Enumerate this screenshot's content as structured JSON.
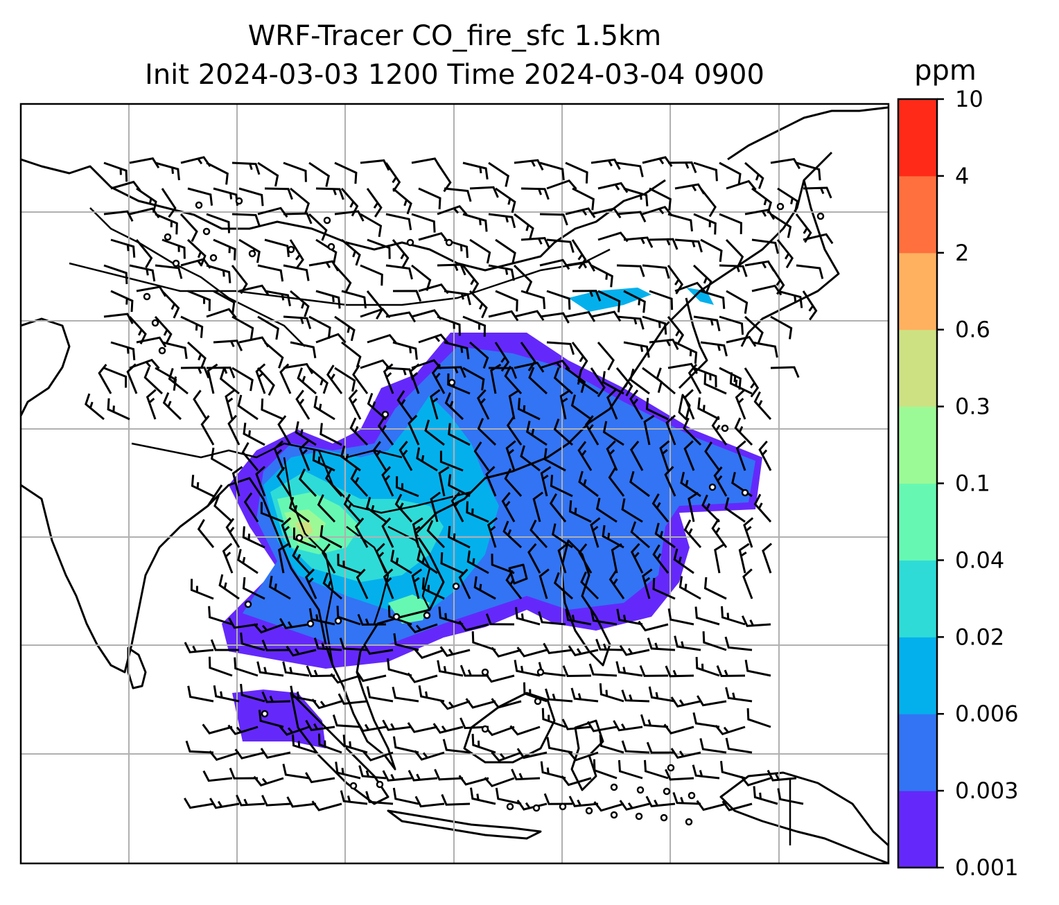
{
  "title": {
    "line1": "WRF-Tracer CO_fire_sfc 1.5km",
    "line2": "Init 2024-03-03 1200 Time 2024-03-04 0900"
  },
  "colorbar": {
    "unit": "ppm",
    "levels": [
      "0.001",
      "0.003",
      "0.006",
      "0.02",
      "0.04",
      "0.1",
      "0.3",
      "0.6",
      "2",
      "4",
      "10"
    ],
    "colors": [
      "#6429fa",
      "#3274f4",
      "#04b0ec",
      "#2fdbd7",
      "#66f8b3",
      "#9cfa96",
      "#cde183",
      "#ffb15f",
      "#ff703e",
      "#ff2a17"
    ]
  },
  "map": {
    "gridlines": true,
    "features": [
      "coastlines",
      "country borders",
      "wind barbs",
      "calm-wind circles"
    ]
  }
}
